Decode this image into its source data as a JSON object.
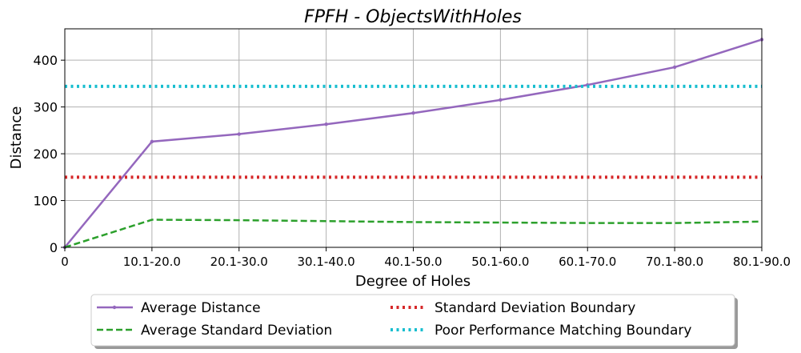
{
  "chart_data": {
    "type": "line",
    "title": "FPFH - ObjectsWithHoles",
    "xlabel": "Degree of Holes",
    "ylabel": "Distance",
    "categories": [
      "0",
      "10.1-20.0",
      "20.1-30.0",
      "30.1-40.0",
      "40.1-50.0",
      "50.1-60.0",
      "60.1-70.0",
      "70.1-80.0",
      "80.1-90.0"
    ],
    "ylim": [
      0,
      467
    ],
    "yticks": [
      0,
      100,
      200,
      300,
      400
    ],
    "grid": true,
    "legend_position": "below",
    "series": [
      {
        "name": "Average Distance",
        "style": "solid",
        "color": "#9467bd",
        "marker": "dot",
        "values": [
          0,
          226,
          242,
          263,
          287,
          315,
          347,
          385,
          444
        ]
      },
      {
        "name": "Average Standard Deviation",
        "style": "dashed",
        "color": "#2ca02c",
        "values": [
          0,
          59,
          58,
          56,
          54,
          53,
          52,
          52,
          55
        ]
      },
      {
        "name": "Standard Deviation Boundary",
        "style": "dotted",
        "color": "#d62728",
        "values": [
          150,
          150,
          150,
          150,
          150,
          150,
          150,
          150,
          150
        ]
      },
      {
        "name": "Poor Performance Matching Boundary",
        "style": "dotted",
        "color": "#17becf",
        "values": [
          344,
          344,
          344,
          344,
          344,
          344,
          344,
          344,
          344
        ]
      }
    ]
  }
}
